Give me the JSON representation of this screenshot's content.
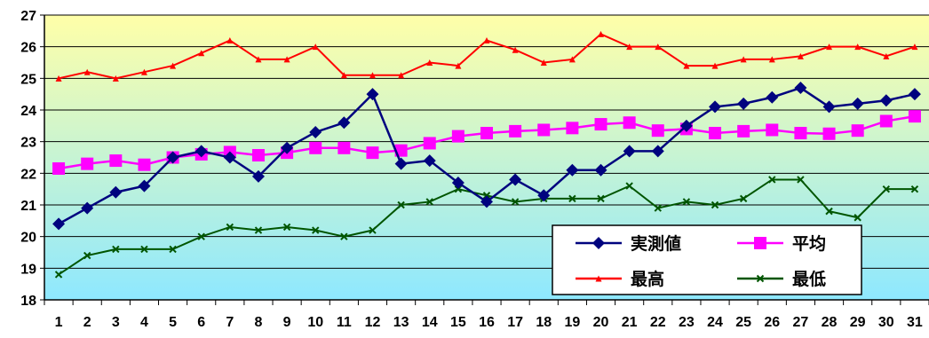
{
  "chart_data": {
    "type": "line",
    "title": "",
    "xlabel": "",
    "ylabel": "",
    "x": [
      1,
      2,
      3,
      4,
      5,
      6,
      7,
      8,
      9,
      10,
      11,
      12,
      13,
      14,
      15,
      16,
      17,
      18,
      19,
      20,
      21,
      22,
      23,
      24,
      25,
      26,
      27,
      28,
      29,
      30,
      31
    ],
    "ylim": [
      18,
      27
    ],
    "yticks": [
      18,
      19,
      20,
      21,
      22,
      23,
      24,
      25,
      26,
      27
    ],
    "grid": true,
    "legend_position": "bottom-right",
    "background_gradient": [
      "#ffffa8",
      "#8ee8ff"
    ],
    "series": [
      {
        "name": "実測値",
        "color": "#00037f",
        "marker": "diamond",
        "values": [
          20.4,
          20.9,
          21.4,
          21.6,
          22.5,
          22.7,
          22.5,
          21.9,
          22.8,
          23.3,
          23.6,
          24.5,
          22.3,
          22.4,
          21.7,
          21.1,
          21.8,
          21.3,
          22.1,
          22.1,
          22.7,
          22.7,
          23.5,
          24.1,
          24.2,
          24.4,
          24.7,
          24.1,
          24.2,
          24.3,
          24.5
        ]
      },
      {
        "name": "平均",
        "color": "#ff00ff",
        "marker": "square",
        "values": [
          22.15,
          22.3,
          22.4,
          22.27,
          22.5,
          22.6,
          22.67,
          22.57,
          22.65,
          22.8,
          22.8,
          22.65,
          22.72,
          22.95,
          23.17,
          23.27,
          23.33,
          23.37,
          23.43,
          23.55,
          23.6,
          23.35,
          23.4,
          23.27,
          23.33,
          23.37,
          23.27,
          23.25,
          23.35,
          23.65,
          23.8
        ]
      },
      {
        "name": "最高",
        "color": "#ff0000",
        "marker": "triangle",
        "values": [
          25.0,
          25.2,
          25.0,
          25.2,
          25.4,
          25.8,
          26.2,
          25.6,
          25.6,
          26.0,
          25.1,
          25.1,
          25.1,
          25.5,
          25.4,
          26.2,
          25.9,
          25.5,
          25.6,
          26.4,
          26.0,
          26.0,
          25.4,
          25.4,
          25.6,
          25.6,
          25.7,
          26.0,
          26.0,
          25.7,
          26.0
        ]
      },
      {
        "name": "最低",
        "color": "#005500",
        "marker": "x",
        "values": [
          18.8,
          19.4,
          19.6,
          19.6,
          19.6,
          20.0,
          20.3,
          20.2,
          20.3,
          20.2,
          20.0,
          20.2,
          21.0,
          21.1,
          21.5,
          21.3,
          21.1,
          21.2,
          21.2,
          21.2,
          21.6,
          20.9,
          21.1,
          21.0,
          21.2,
          21.8,
          21.8,
          20.8,
          20.6,
          21.5,
          21.5
        ]
      }
    ]
  }
}
